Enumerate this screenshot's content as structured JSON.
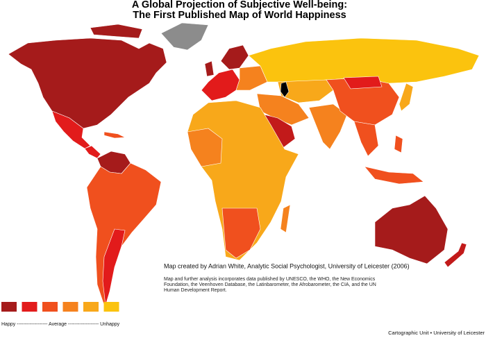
{
  "header": {
    "title": [
      "A Global Projection of Subjective Well-being:",
      "The First Published Map of World Happiness"
    ]
  },
  "credits": {
    "author": "Map created by Adrian White, Analytic Social Psychologist, University of Leicester (2006)",
    "sources": [
      "Map and further analysis incorporates data published by UNESCO, the WHO, the New Economics",
      "Foundation, the Veenhoven Database, the Latinbarometer, the Afrobarometer, the CIA, and the UN",
      "Human Development Report."
    ]
  },
  "legend": {
    "colors": [
      "#a51b1b",
      "#e21b1b",
      "#f0501e",
      "#f5821e",
      "#f8a81a",
      "#fbc30e"
    ],
    "scale": "Happy ------------------- Average ------------------- Unhappy"
  },
  "footer": "Cartographic Unit  •  University of Leicester"
}
